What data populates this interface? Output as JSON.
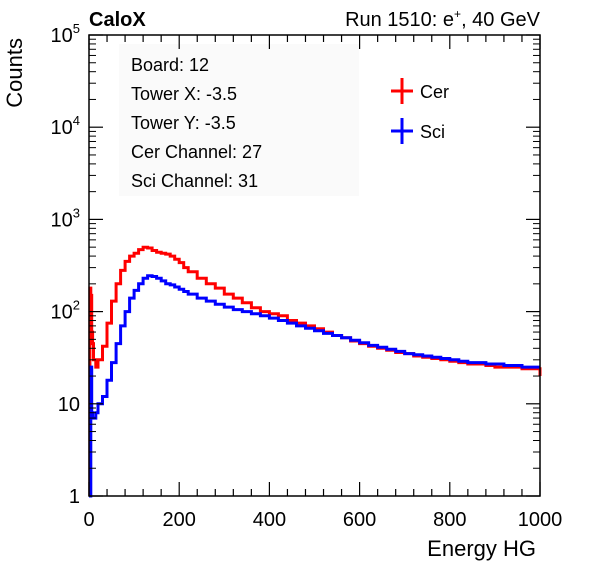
{
  "header": {
    "left_label": "CaloX",
    "run_prefix": "Run 1510: e",
    "run_superscript": "+",
    "run_suffix": ", 40 GeV"
  },
  "info_box": {
    "lines": [
      "Board: 12",
      "Tower X: -3.5",
      "Tower Y: -3.5",
      "Cer Channel: 27",
      "Sci Channel: 31"
    ]
  },
  "chart_data": {
    "type": "line",
    "title": "",
    "xlabel": "Energy HG",
    "ylabel": "Counts",
    "xlim": [
      0,
      1000
    ],
    "ylim": [
      1,
      100000
    ],
    "yscale": "log",
    "x_ticks": [
      "0",
      "200",
      "400",
      "600",
      "800",
      "1000"
    ],
    "y_ticks": [
      {
        "base": "1",
        "exp": ""
      },
      {
        "base": "10",
        "exp": ""
      },
      {
        "base": "10",
        "exp": "2"
      },
      {
        "base": "10",
        "exp": "3"
      },
      {
        "base": "10",
        "exp": "4"
      },
      {
        "base": "10",
        "exp": "5"
      }
    ],
    "legend_position": "top-right",
    "series": [
      {
        "name": "Cer",
        "color": "#ff0000",
        "x": [
          0,
          2,
          4,
          6,
          8,
          10,
          15,
          20,
          30,
          40,
          50,
          60,
          70,
          80,
          90,
          100,
          110,
          120,
          130,
          140,
          150,
          160,
          170,
          180,
          190,
          200,
          210,
          220,
          240,
          260,
          280,
          300,
          320,
          340,
          360,
          380,
          400,
          420,
          440,
          460,
          480,
          500,
          520,
          540,
          560,
          580,
          600,
          620,
          640,
          660,
          680,
          700,
          720,
          740,
          760,
          780,
          800,
          820,
          840,
          860,
          880,
          900,
          920,
          940,
          960,
          980,
          1000
        ],
        "y": [
          1,
          180,
          150,
          60,
          45,
          30,
          25,
          30,
          42,
          75,
          130,
          200,
          280,
          350,
          400,
          430,
          470,
          500,
          490,
          460,
          440,
          430,
          420,
          400,
          370,
          340,
          300,
          270,
          230,
          200,
          180,
          155,
          140,
          125,
          110,
          100,
          95,
          90,
          80,
          75,
          70,
          65,
          60,
          55,
          52,
          48,
          45,
          42,
          40,
          38,
          36,
          35,
          33,
          32,
          31,
          30,
          29,
          28,
          27,
          27,
          26,
          25,
          25,
          25,
          24,
          24,
          20
        ]
      },
      {
        "name": "Sci",
        "color": "#0000ff",
        "x": [
          0,
          2,
          4,
          6,
          8,
          10,
          15,
          20,
          30,
          40,
          50,
          60,
          70,
          80,
          90,
          100,
          110,
          120,
          130,
          140,
          150,
          160,
          170,
          180,
          190,
          200,
          210,
          220,
          240,
          260,
          280,
          300,
          320,
          340,
          360,
          380,
          400,
          420,
          440,
          460,
          480,
          500,
          520,
          540,
          560,
          580,
          600,
          620,
          640,
          660,
          680,
          700,
          720,
          740,
          760,
          780,
          800,
          820,
          840,
          860,
          880,
          900,
          920,
          940,
          960,
          980,
          1000
        ],
        "y": [
          1,
          1,
          25,
          8,
          7,
          7,
          8,
          10,
          12,
          18,
          28,
          45,
          70,
          100,
          140,
          170,
          200,
          230,
          245,
          240,
          230,
          215,
          200,
          195,
          185,
          175,
          165,
          155,
          140,
          130,
          120,
          112,
          105,
          100,
          95,
          90,
          85,
          80,
          75,
          70,
          66,
          62,
          58,
          55,
          52,
          49,
          46,
          43,
          41,
          39,
          37,
          35,
          34,
          33,
          32,
          31,
          30,
          29,
          28,
          28,
          27,
          27,
          26,
          26,
          25,
          25,
          25
        ]
      }
    ]
  }
}
